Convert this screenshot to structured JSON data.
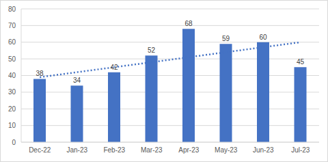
{
  "chart_data": {
    "type": "bar",
    "categories": [
      "Dec-22",
      "Jan-23",
      "Feb-23",
      "Mar-23",
      "Apr-23",
      "May-23",
      "Jun-23",
      "Jul-23"
    ],
    "series": [
      {
        "type": "bar",
        "color": "#4472c4",
        "values": [
          38,
          34,
          42,
          52,
          68,
          59,
          60,
          45
        ],
        "data_labels": true
      },
      {
        "type": "line",
        "color": "#4472c4",
        "line_style": "dotted",
        "values": [
          39,
          42,
          45,
          48,
          51,
          54,
          57,
          60
        ]
      }
    ],
    "ylim": [
      0,
      80
    ],
    "yticks": [
      0,
      10,
      20,
      30,
      40,
      50,
      60,
      70,
      80
    ],
    "grid": true
  }
}
